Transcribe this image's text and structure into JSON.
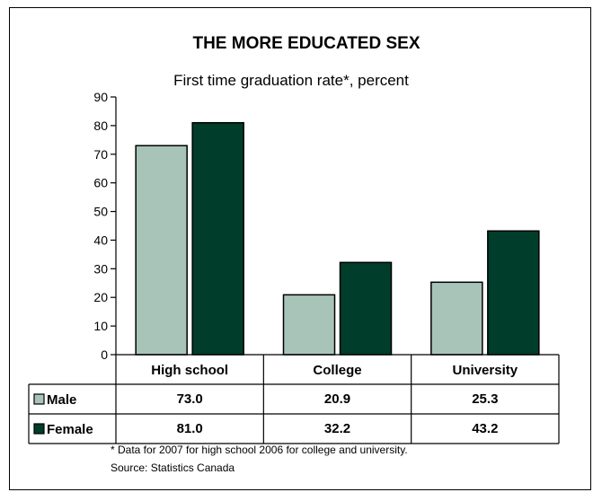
{
  "chart_data": {
    "type": "bar",
    "title": "THE MORE EDUCATED SEX",
    "subtitle": "First time graduation rate*, percent",
    "categories": [
      "High school",
      "College",
      "University"
    ],
    "series": [
      {
        "name": "Male",
        "values": [
          73.0,
          20.9,
          25.3
        ],
        "labels": [
          "73.0",
          "20.9",
          "25.3"
        ],
        "color": "#a8c4b8"
      },
      {
        "name": "Female",
        "values": [
          81.0,
          32.2,
          43.2
        ],
        "labels": [
          "81.0",
          "32.2",
          "43.2"
        ],
        "color": "#003d2b"
      }
    ],
    "ylim": [
      0,
      90
    ],
    "yticks": [
      0,
      10,
      20,
      30,
      40,
      50,
      60,
      70,
      80,
      90
    ],
    "data_table": true,
    "grid": false,
    "footnote": "* Data for 2007 for high school 2006 for college and university.",
    "source": "Source: Statistics Canada"
  }
}
